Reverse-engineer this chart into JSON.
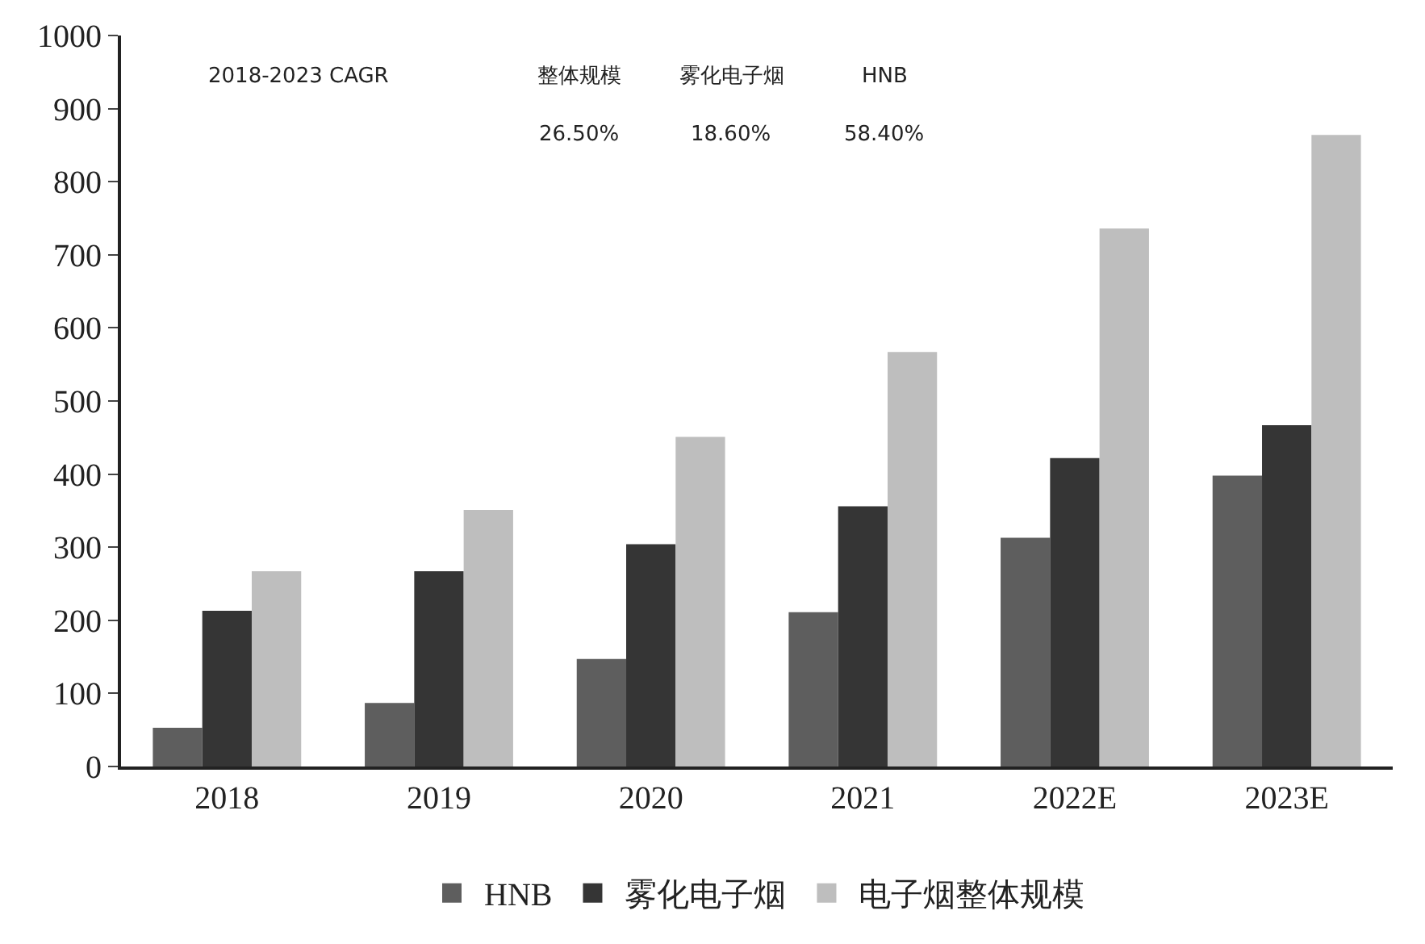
{
  "chart_data": {
    "type": "bar",
    "categories": [
      "2018",
      "2019",
      "2020",
      "2021",
      "2022E",
      "2023E"
    ],
    "series": [
      {
        "name": "HNB",
        "color": "#5e5e5e",
        "values": [
          53,
          87,
          147,
          211,
          313,
          398
        ]
      },
      {
        "name": "雾化电子烟",
        "color": "#353535",
        "values": [
          213,
          267,
          304,
          356,
          422,
          467
        ]
      },
      {
        "name": "电子烟整体规模",
        "color": "#bebebe",
        "values": [
          267,
          351,
          451,
          567,
          736,
          864
        ]
      }
    ],
    "ylim": [
      0,
      1000
    ],
    "yticks": [
      0,
      100,
      200,
      300,
      400,
      500,
      600,
      700,
      800,
      900,
      1000
    ],
    "legend": "bottom",
    "annotations": [
      "2018-2023 CAGR",
      "整体规模",
      "雾化电子烟",
      "HNB",
      "26.50%",
      "18.60%",
      "58.40%"
    ]
  }
}
